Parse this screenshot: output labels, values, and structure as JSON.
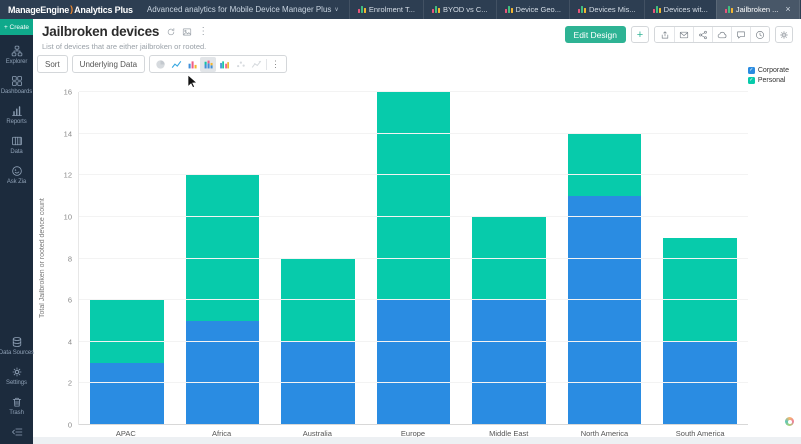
{
  "navbar": {
    "brand_manage": "ManageEngine",
    "brand_swoosh": ")",
    "brand_product": "Analytics Plus",
    "workspace": "Advanced analytics for Mobile Device Manager Plus",
    "workspace_caret": "∨",
    "tabs": [
      {
        "label": "Enrolment T...",
        "active": false
      },
      {
        "label": "BYOD vs C...",
        "active": false
      },
      {
        "label": "Device Geo...",
        "active": false
      },
      {
        "label": "Devices Mis...",
        "active": false
      },
      {
        "label": "Devices wit...",
        "active": false
      },
      {
        "label": "Jailbroken ...",
        "active": true,
        "close": "×"
      }
    ],
    "right_icons": [
      "notifications-bell-icon",
      "gear-icon",
      "help-icon",
      "avatar"
    ]
  },
  "sidebar": {
    "create_label": "+ Create",
    "items": [
      {
        "label": "Explorer",
        "icon": "explorer-icon"
      },
      {
        "label": "Dashboards",
        "icon": "dashboards-icon"
      },
      {
        "label": "Reports",
        "icon": "reports-icon"
      },
      {
        "label": "Data",
        "icon": "data-icon"
      },
      {
        "label": "Ask Zia",
        "icon": "ask-zia-icon"
      }
    ],
    "bottom_items": [
      {
        "label": "Data Sources",
        "icon": "data-sources-icon"
      },
      {
        "label": "Settings",
        "icon": "settings-gear-icon"
      },
      {
        "label": "Trash",
        "icon": "trash-icon"
      }
    ],
    "collapse_icon": "collapse-sidebar-icon"
  },
  "header": {
    "title": "Jailbroken devices",
    "subtitle": "List of devices that are either jailbroken or rooted.",
    "title_icons": [
      "refresh-icon",
      "snapshot-icon",
      "more-icon"
    ],
    "more_glyph": "⋮",
    "edit_design_label": "Edit Design",
    "add_label": "+",
    "action_icons": [
      "export-icon",
      "email-icon",
      "share-icon",
      "publish-icon",
      "comment-icon",
      "history-icon"
    ],
    "settings_icon": "gear-icon"
  },
  "toolbar": {
    "sort_label": "Sort",
    "underlying_data_label": "Underlying Data",
    "chart_type_icons": [
      {
        "icon": "pie-chart-icon",
        "state": "disabled"
      },
      {
        "icon": "line-chart-icon",
        "state": "normal"
      },
      {
        "icon": "bar-chart-icon",
        "state": "normal"
      },
      {
        "icon": "stacked-bar-chart-icon",
        "state": "selected"
      },
      {
        "icon": "grouped-bar-chart-icon",
        "state": "normal"
      },
      {
        "icon": "scatter-chart-icon",
        "state": "disabled"
      },
      {
        "icon": "funnel-chart-icon",
        "state": "disabled"
      },
      {
        "icon": "more-icon",
        "state": "normal"
      }
    ]
  },
  "chart_data": {
    "type": "bar",
    "stacked": true,
    "title": "",
    "xlabel": "",
    "ylabel": "Total Jailbroken or rooted device count",
    "categories": [
      "APAC",
      "Africa",
      "Australia",
      "Europe",
      "Middle East",
      "North America",
      "South America"
    ],
    "series": [
      {
        "name": "Corporate",
        "color": "#2a8ce2",
        "values": [
          3,
          5,
          4,
          6,
          6,
          11,
          4
        ]
      },
      {
        "name": "Personal",
        "color": "#07cbab",
        "values": [
          3,
          7,
          4,
          10,
          4,
          3,
          5
        ]
      }
    ],
    "totals": [
      6,
      12,
      8,
      16,
      10,
      14,
      9
    ],
    "ylim": [
      0,
      16
    ],
    "ytick_step": 2,
    "yticks": [
      0,
      2,
      4,
      6,
      8,
      10,
      12,
      14,
      16
    ],
    "grid": true,
    "legend_position": "top-right",
    "legend_check": "✓"
  },
  "colors": {
    "navbar_bg": "#2d3e52",
    "sidebar_bg": "#1c2b3d",
    "create_bg": "#0fa98b",
    "edit_design_bg": "#2eb394",
    "corporate": "#2a8ce2",
    "personal": "#07cbab"
  }
}
